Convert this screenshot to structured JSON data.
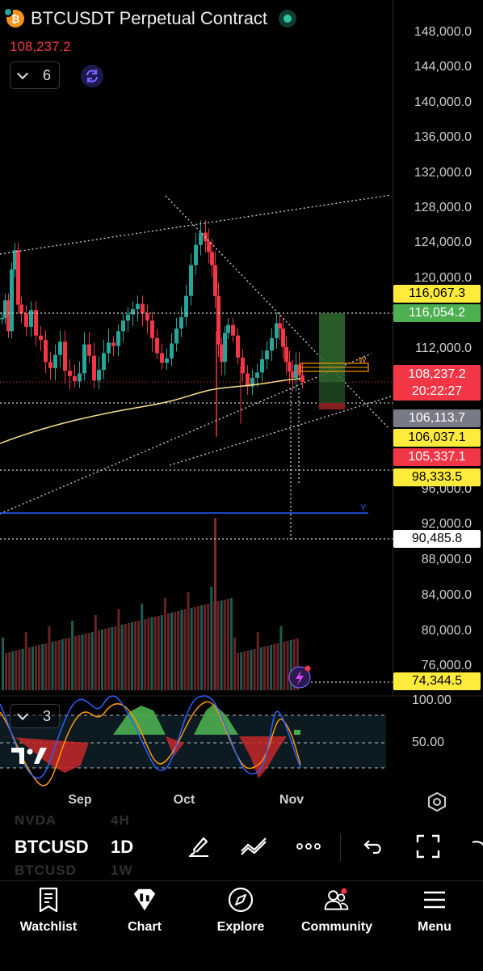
{
  "header": {
    "symbol_title": "BTCUSDT Perpetual Contract",
    "last_price": "108,237.2",
    "indicators_count": "6"
  },
  "price_scale": {
    "ticks": [
      "148,000.0",
      "144,000.0",
      "140,000.0",
      "136,000.0",
      "132,000.0",
      "128,000.0",
      "124,000.0",
      "120,000.0",
      "112,000.0",
      "96,000.0",
      "92,000.0",
      "88,000.0",
      "84,000.0",
      "80,000.0",
      "76,000.0"
    ],
    "labels": {
      "l116067": "116,067.3",
      "l116054": "116,054.2",
      "current": "108,237.2",
      "countdown": "20:22:27",
      "l106113": "106,113.7",
      "l106037": "106,037.1",
      "l105337": "105,337.1",
      "l98333": "98,333.5",
      "l90485": "90,485.8",
      "l74344": "74,344.5"
    },
    "colors": {
      "up": "#26a69a",
      "down": "#f23645",
      "ma": "#f5e08a",
      "yellow_label": "#ffeb3b",
      "green_label": "#4caf50",
      "red_label": "#f23645",
      "grey_label": "#787b86"
    }
  },
  "chart": {
    "line_label_y": "Y",
    "marker_label": "W"
  },
  "oscillator": {
    "pane_count": "3",
    "tick_100": "100.00",
    "tick_50": "50.00"
  },
  "time_axis": {
    "labels": [
      "Sep",
      "Oct",
      "Nov"
    ]
  },
  "toolbar": {
    "symbol": "BTCUSD",
    "interval": "1D",
    "ghost_top_symbol": "NVDA",
    "ghost_top_interval": "4H",
    "ghost_bottom_symbol": "BTCUSD",
    "ghost_bottom_interval": "1W"
  },
  "bottom_nav": {
    "items": [
      "Watchlist",
      "Chart",
      "Explore",
      "Community",
      "Menu"
    ]
  }
}
